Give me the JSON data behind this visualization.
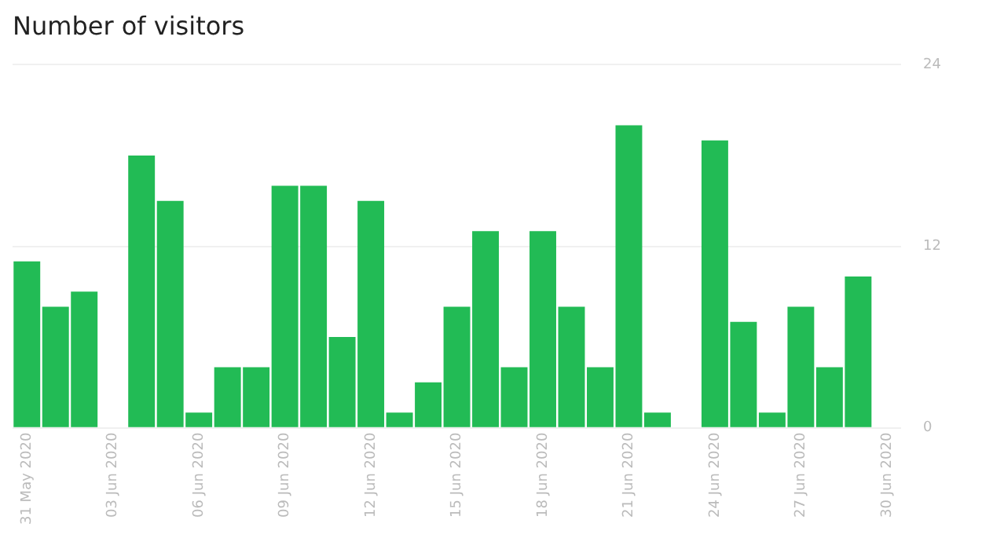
{
  "chart_data": {
    "type": "bar",
    "title": "Number of visitors",
    "x": [
      "2020-05-31",
      "2020-06-01",
      "2020-06-02",
      "2020-06-03",
      "2020-06-04",
      "2020-06-05",
      "2020-06-06",
      "2020-06-07",
      "2020-06-08",
      "2020-06-09",
      "2020-06-10",
      "2020-06-11",
      "2020-06-12",
      "2020-06-13",
      "2020-06-14",
      "2020-06-15",
      "2020-06-16",
      "2020-06-17",
      "2020-06-18",
      "2020-06-19",
      "2020-06-20",
      "2020-06-21",
      "2020-06-22",
      "2020-06-23",
      "2020-06-24",
      "2020-06-25",
      "2020-06-26",
      "2020-06-27",
      "2020-06-28",
      "2020-06-29",
      "2020-06-30"
    ],
    "values": [
      11,
      8,
      9,
      0,
      18,
      15,
      1,
      4,
      4,
      16,
      16,
      6,
      15,
      1,
      3,
      8,
      13,
      4,
      13,
      8,
      4,
      20,
      1,
      0,
      19,
      7,
      1,
      8,
      4,
      10,
      0
    ],
    "color": "#22bb55",
    "xlim": [
      "2020-05-30T12:00",
      "2020-06-30T12:00"
    ],
    "xticks": [
      {
        "value": "2020-05-31",
        "label": "31 May 2020"
      },
      {
        "value": "2020-06-03",
        "label": "03 Jun 2020"
      },
      {
        "value": "2020-06-06",
        "label": "06 Jun 2020"
      },
      {
        "value": "2020-06-09",
        "label": "09 Jun 2020"
      },
      {
        "value": "2020-06-12",
        "label": "12 Jun 2020"
      },
      {
        "value": "2020-06-15",
        "label": "15 Jun 2020"
      },
      {
        "value": "2020-06-18",
        "label": "18 Jun 2020"
      },
      {
        "value": "2020-06-21",
        "label": "21 Jun 2020"
      },
      {
        "value": "2020-06-24",
        "label": "24 Jun 2020"
      },
      {
        "value": "2020-06-27",
        "label": "27 Jun 2020"
      },
      {
        "value": "2020-06-30",
        "label": "30 Jun 2020"
      }
    ],
    "ylim": [
      0,
      24
    ],
    "yticks": [
      0,
      12,
      24
    ],
    "grid": "y",
    "legend": false
  }
}
